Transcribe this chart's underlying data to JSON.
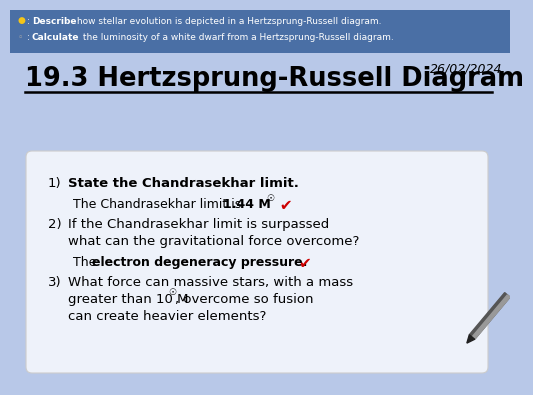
{
  "bg_color": "#b8c8e8",
  "header_bg": "#4a6fa5",
  "header_text_color": "#ffffff",
  "header_bullet1_color": "#f5c518",
  "header_bullet2_color": "#aaaaaa",
  "date": "26/02/2024",
  "title": "19.3 Hertzsprung-Russell Diagram",
  "card_bg": "#eef2fa",
  "items": [
    {
      "num": "1)",
      "question": "State the Chandrasekhar limit.",
      "answer_normal": "The Chandrasekhar limit is ",
      "answer_bold": "1.44 M",
      "answer_solar": true,
      "answer_check": true,
      "question2": "",
      "answer2_normal": "",
      "answer2_bold": ""
    },
    {
      "num": "2)",
      "question": "If the Chandrasekhar limit is surpassed",
      "question2": "what can the gravitational force overcome?",
      "answer_normal": "The ",
      "answer_bold": "electron degeneracy pressure.",
      "answer_solar": false,
      "answer_check": true,
      "answer2_normal": "",
      "answer2_bold": ""
    },
    {
      "num": "3)",
      "question": "What force can massive stars, with a mass",
      "question2": "greater than 10 M☉, overcome so fusion",
      "question3": "can create heavier elements?",
      "answer_normal": "",
      "answer_bold": "",
      "answer_solar": false,
      "answer_check": false,
      "answer2_normal": "",
      "answer2_bold": ""
    }
  ]
}
